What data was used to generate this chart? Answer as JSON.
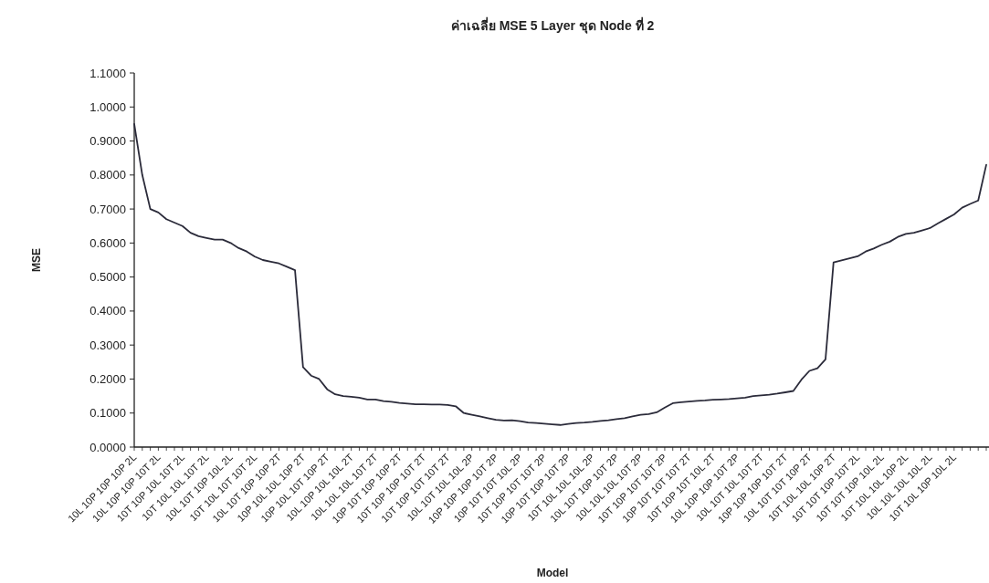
{
  "chart_data": {
    "type": "line",
    "title": "ค่าเฉลี่ย MSE 5 Layer ชุด Node ที่ 2",
    "xlabel": "Model",
    "ylabel": "MSE",
    "color": "#2b2b3a",
    "categories": [
      "10L 10P 10P 10P 2L",
      null,
      null,
      "10L 10P 10P 10T 2L",
      null,
      null,
      "10T 10P 10L 10T 2L",
      null,
      null,
      "10T 10L 10L 10T 2L",
      null,
      null,
      "10L 10T 10P 10L 2L",
      null,
      null,
      "10T 10L 10T 10T 2L",
      null,
      null,
      "10L 10T 10P 10P 2T",
      null,
      null,
      "10P 10L 10L 10P 2T",
      null,
      null,
      "10P 10L 10T 10P 2T",
      null,
      null,
      "10L 10P 10L 10L 2T",
      null,
      null,
      "10L 10L 10L 10T 2T",
      null,
      null,
      "10P 10T 10P 10P 2T",
      null,
      null,
      "10T 10P 10P 10T 2T",
      null,
      null,
      "10T 10P 10T 10T 2T",
      null,
      null,
      "10L 10T 10L 10L 2P",
      null,
      null,
      "10P 10P 10P 10T 2P",
      null,
      null,
      "10P 10T 10T 10L 2P",
      null,
      null,
      "10T 10P 10T 10T 2P",
      null,
      null,
      "10P 10T 10P 10T 2P",
      null,
      null,
      "10T 10L 10L 10L 2P",
      null,
      null,
      "10L 10T 10P 10T 2P",
      null,
      null,
      "10L 10L 10L 10T 2P",
      null,
      null,
      "10T 10P 10T 10T 2P",
      null,
      null,
      "10P 10T 10T 10T 2T",
      null,
      null,
      "10T 10P 10T 10L 2T",
      null,
      null,
      "10L 10P 10P 10T 2P",
      null,
      null,
      "10L 10T 10L 10T 2T",
      null,
      null,
      "10P 10P 10P 10T 2T",
      null,
      null,
      "10L 10T 10T 10P 2T",
      null,
      null,
      "10T 10L 10L 10P 2T",
      null,
      null,
      "10T 10T 10P 10T 2L",
      null,
      null,
      "10T 10T 10P 10L 2L",
      null,
      null,
      "10T 10L 10L 10P 2L",
      null,
      null,
      "10L 10L 10L 10L 2L",
      null,
      null,
      "10T 10L 10P 10L 2L",
      null,
      null,
      null,
      null
    ],
    "values": [
      0.95,
      0.8,
      0.7,
      0.69,
      0.67,
      0.66,
      0.65,
      0.63,
      0.62,
      0.615,
      0.61,
      0.61,
      0.6,
      0.585,
      0.575,
      0.56,
      0.55,
      0.545,
      0.54,
      0.53,
      0.52,
      0.235,
      0.21,
      0.2,
      0.17,
      0.155,
      0.15,
      0.148,
      0.145,
      0.14,
      0.14,
      0.135,
      0.133,
      0.13,
      0.128,
      0.126,
      0.126,
      0.125,
      0.125,
      0.124,
      0.12,
      0.1,
      0.095,
      0.09,
      0.085,
      0.08,
      0.078,
      0.079,
      0.076,
      0.072,
      0.071,
      0.069,
      0.067,
      0.065,
      0.068,
      0.071,
      0.072,
      0.074,
      0.077,
      0.079,
      0.082,
      0.085,
      0.09,
      0.095,
      0.097,
      0.102,
      0.116,
      0.129,
      0.132,
      0.134,
      0.136,
      0.137,
      0.139,
      0.14,
      0.141,
      0.143,
      0.145,
      0.15,
      0.152,
      0.154,
      0.157,
      0.161,
      0.165,
      0.198,
      0.224,
      0.232,
      0.258,
      0.543,
      0.549,
      0.555,
      0.561,
      0.575,
      0.584,
      0.595,
      0.604,
      0.618,
      0.627,
      0.63,
      0.637,
      0.644,
      0.658,
      0.671,
      0.684,
      0.704,
      0.715,
      0.725,
      0.83
    ],
    "ylim": [
      0,
      1.1
    ],
    "yticks": [
      {
        "value": 0,
        "label": "0.0000"
      },
      {
        "value": 0.1,
        "label": "0.1000"
      },
      {
        "value": 0.2,
        "label": "0.2000"
      },
      {
        "value": 0.3,
        "label": "0.3000"
      },
      {
        "value": 0.4,
        "label": "0.4000"
      },
      {
        "value": 0.5,
        "label": "0.5000"
      },
      {
        "value": 0.6,
        "label": "0.6000"
      },
      {
        "value": 0.7,
        "label": "0.7000"
      },
      {
        "value": 0.8,
        "label": "0.8000"
      },
      {
        "value": 0.9,
        "label": "0.9000"
      },
      {
        "value": 1.0,
        "label": "1.0000"
      },
      {
        "value": 1.1,
        "label": "1.1000"
      }
    ]
  }
}
